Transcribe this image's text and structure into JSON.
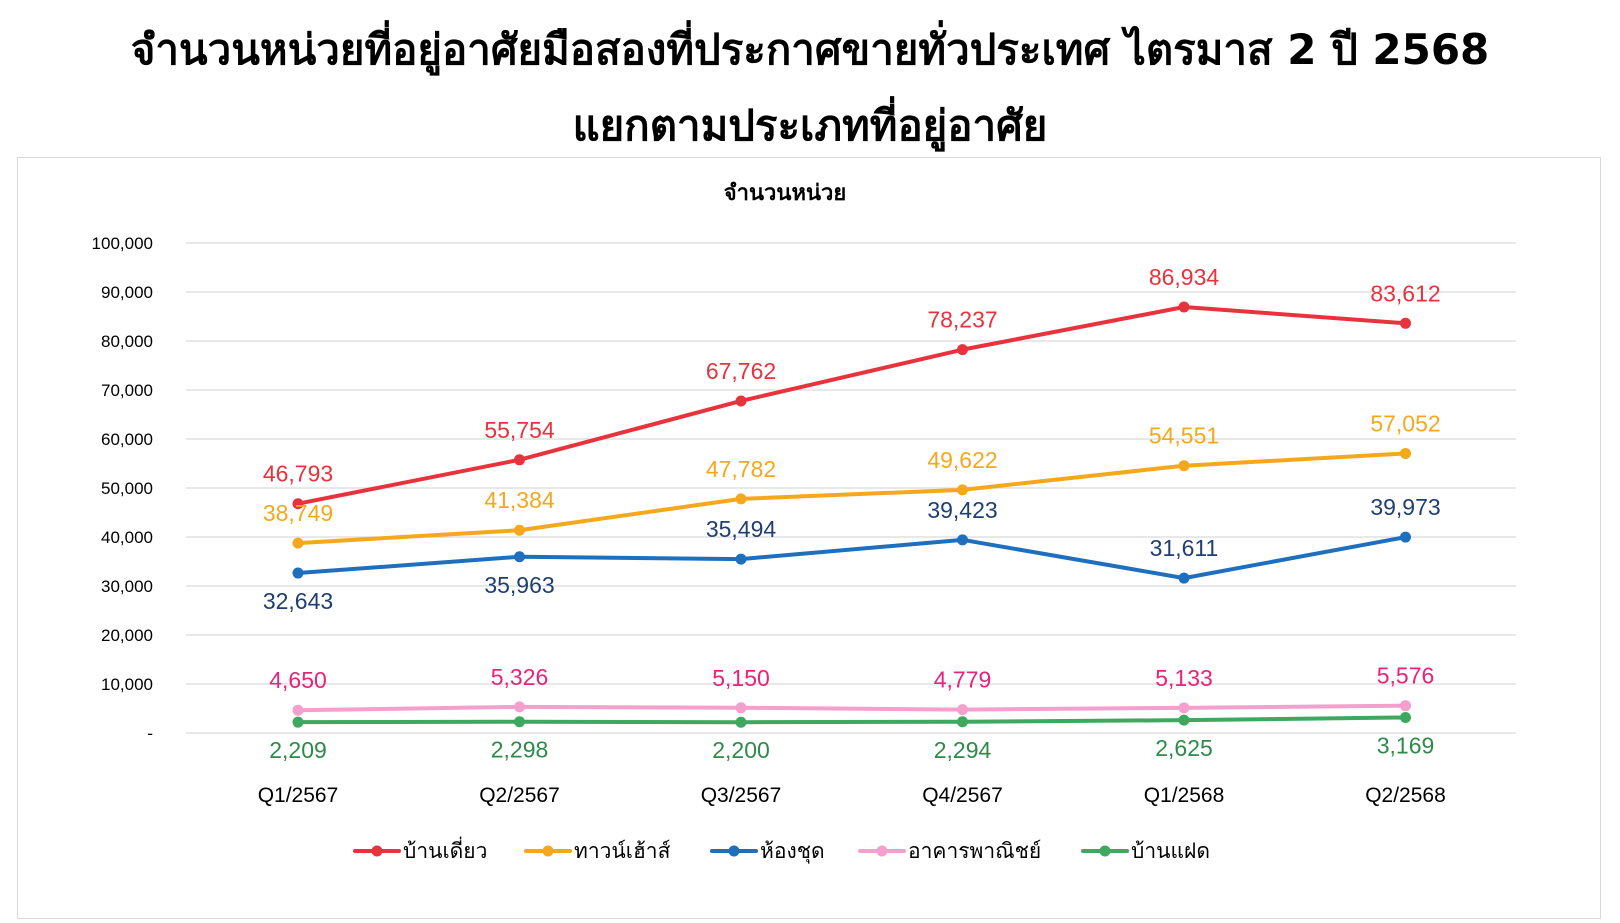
{
  "title_lines": [
    "จำนวนหน่วยที่อยู่อาศัยมือสองที่ประกาศขายทั่วประเทศ ไตรมาส 2 ปี 2568",
    "แยกตามประเภทที่อยู่อาศัย"
  ],
  "chart_data": {
    "type": "line",
    "title": "จำนวนหน่วย",
    "xlabel": "",
    "ylabel": "",
    "categories": [
      "Q1/2567",
      "Q2/2567",
      "Q3/2567",
      "Q4/2567",
      "Q1/2568",
      "Q2/2568"
    ],
    "ylim": [
      0,
      100000
    ],
    "yticks": [
      0,
      10000,
      20000,
      30000,
      40000,
      50000,
      60000,
      70000,
      80000,
      90000,
      100000
    ],
    "ytick_labels": [
      "-",
      "10,000",
      "20,000",
      "30,000",
      "40,000",
      "50,000",
      "60,000",
      "70,000",
      "80,000",
      "90,000",
      "100,000"
    ],
    "grid": true,
    "legend_position": "bottom",
    "series": [
      {
        "name": "บ้านเดี่ยว",
        "color": "#e8323c",
        "label_color": "#e8323c",
        "label_position": "above",
        "values": [
          46793,
          55754,
          67762,
          78237,
          86934,
          83612
        ],
        "labels": [
          "46,793",
          "55,754",
          "67,762",
          "78,237",
          "86,934",
          "83,612"
        ]
      },
      {
        "name": "ทาวน์เฮ้าส์",
        "color": "#f5a81c",
        "label_color": "#f5a81c",
        "label_position": "above",
        "values": [
          38749,
          41384,
          47782,
          49622,
          54551,
          57052
        ],
        "labels": [
          "38,749",
          "41,384",
          "47,782",
          "49,622",
          "54,551",
          "57,052"
        ]
      },
      {
        "name": "ห้องชุด",
        "color": "#1f6fbf",
        "label_color": "#1f3f73",
        "label_position": [
          "below",
          "below",
          "above",
          "above",
          "above",
          "above"
        ],
        "values": [
          32643,
          35963,
          35494,
          39423,
          31611,
          39973
        ],
        "labels": [
          "32,643",
          "35,963",
          "35,494",
          "39,423",
          "31,611",
          "39,973"
        ]
      },
      {
        "name": "อาคารพาณิชย์",
        "color": "#f59fcf",
        "label_color": "#e8237a",
        "label_position": "above",
        "values": [
          4650,
          5326,
          5150,
          4779,
          5133,
          5576
        ],
        "labels": [
          "4,650",
          "5,326",
          "5,150",
          "4,779",
          "5,133",
          "5,576"
        ]
      },
      {
        "name": "บ้านแฝด",
        "color": "#3ea85f",
        "label_color": "#2e8a4a",
        "label_position": "below",
        "values": [
          2209,
          2298,
          2200,
          2294,
          2625,
          3169
        ],
        "labels": [
          "2,209",
          "2,298",
          "2,200",
          "2,294",
          "2,625",
          "3,169"
        ]
      }
    ]
  }
}
